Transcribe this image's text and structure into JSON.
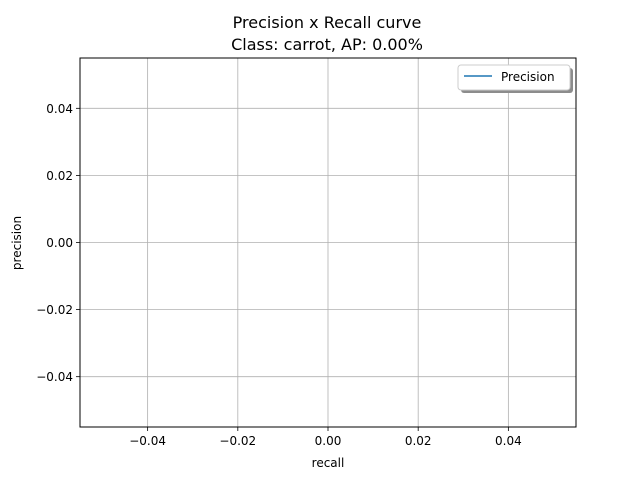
{
  "chart_data": {
    "type": "line",
    "title": "Precision x Recall curve",
    "subtitle": "Class: carrot, AP: 0.00%",
    "xlabel": "recall",
    "ylabel": "precision",
    "xlim": [
      -0.055,
      0.055
    ],
    "ylim": [
      -0.055,
      0.055
    ],
    "x_ticks": [
      -0.04,
      -0.02,
      0.0,
      0.02,
      0.04
    ],
    "y_ticks": [
      -0.04,
      -0.02,
      0.0,
      0.02,
      0.04
    ],
    "x_tick_labels": [
      "−0.04",
      "−0.02",
      "0.00",
      "0.02",
      "0.04"
    ],
    "y_tick_labels": [
      "−0.04",
      "−0.02",
      "0.00",
      "0.02",
      "0.04"
    ],
    "grid": true,
    "legend_position": "top-right",
    "series": [
      {
        "name": "Precision",
        "color": "#1f77b4",
        "x": [],
        "y": []
      }
    ]
  }
}
